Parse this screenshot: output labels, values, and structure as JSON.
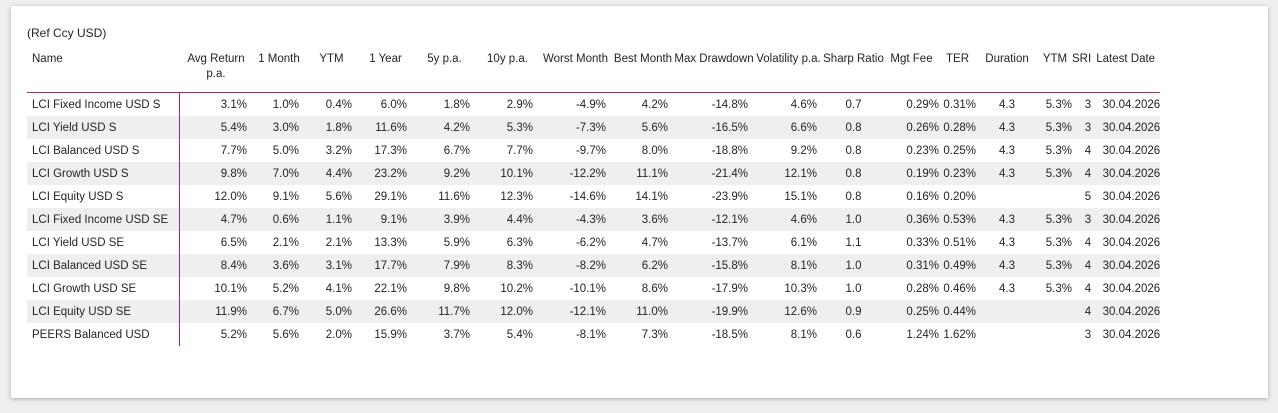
{
  "caption": "(Ref Ccy USD)",
  "headers": {
    "name": "Name",
    "avg_return": "Avg Return p.a.",
    "m1": "1 Month",
    "ytm": "YTM",
    "y1": "1 Year",
    "y5": "5y p.a.",
    "y10": "10y p.a.",
    "worst": "Worst Month",
    "best": "Best Month",
    "maxdd": "Max Drawdown",
    "vol": "Volatility p.a.",
    "sharp": "Sharp Ratio",
    "mgt": "Mgt Fee",
    "ter": "TER",
    "duration": "Duration",
    "ytm2": "YTM",
    "sri": "SRI",
    "date": "Latest Date"
  },
  "rows": [
    {
      "name": "LCI Fixed Income USD S",
      "avg": "3.1%",
      "m1": "1.0%",
      "ytm": "0.4%",
      "y1": "6.0%",
      "y5": "1.8%",
      "y10": "2.9%",
      "worst": "-4.9%",
      "best": "4.2%",
      "maxdd": "-14.8%",
      "vol": "4.6%",
      "sharp": "0.7",
      "mgt": "0.29%",
      "ter": "0.31%",
      "dur": "4.3",
      "ytm2": "5.3%",
      "sri": "3",
      "date": "30.04.2026"
    },
    {
      "name": "LCI Yield USD S",
      "avg": "5.4%",
      "m1": "3.0%",
      "ytm": "1.8%",
      "y1": "11.6%",
      "y5": "4.2%",
      "y10": "5.3%",
      "worst": "-7.3%",
      "best": "5.6%",
      "maxdd": "-16.5%",
      "vol": "6.6%",
      "sharp": "0.8",
      "mgt": "0.26%",
      "ter": "0.28%",
      "dur": "4.3",
      "ytm2": "5.3%",
      "sri": "3",
      "date": "30.04.2026"
    },
    {
      "name": "LCI Balanced USD S",
      "avg": "7.7%",
      "m1": "5.0%",
      "ytm": "3.2%",
      "y1": "17.3%",
      "y5": "6.7%",
      "y10": "7.7%",
      "worst": "-9.7%",
      "best": "8.0%",
      "maxdd": "-18.8%",
      "vol": "9.2%",
      "sharp": "0.8",
      "mgt": "0.23%",
      "ter": "0.25%",
      "dur": "4.3",
      "ytm2": "5.3%",
      "sri": "4",
      "date": "30.04.2026"
    },
    {
      "name": "LCI Growth USD S",
      "avg": "9.8%",
      "m1": "7.0%",
      "ytm": "4.4%",
      "y1": "23.2%",
      "y5": "9.2%",
      "y10": "10.1%",
      "worst": "-12.2%",
      "best": "11.1%",
      "maxdd": "-21.4%",
      "vol": "12.1%",
      "sharp": "0.8",
      "mgt": "0.19%",
      "ter": "0.23%",
      "dur": "4.3",
      "ytm2": "5.3%",
      "sri": "4",
      "date": "30.04.2026"
    },
    {
      "name": "LCI Equity USD S",
      "avg": "12.0%",
      "m1": "9.1%",
      "ytm": "5.6%",
      "y1": "29.1%",
      "y5": "11.6%",
      "y10": "12.3%",
      "worst": "-14.6%",
      "best": "14.1%",
      "maxdd": "-23.9%",
      "vol": "15.1%",
      "sharp": "0.8",
      "mgt": "0.16%",
      "ter": "0.20%",
      "dur": "",
      "ytm2": "",
      "sri": "5",
      "date": "30.04.2026"
    },
    {
      "name": "LCI Fixed Income USD SE",
      "avg": "4.7%",
      "m1": "0.6%",
      "ytm": "1.1%",
      "y1": "9.1%",
      "y5": "3.9%",
      "y10": "4.4%",
      "worst": "-4.3%",
      "best": "3.6%",
      "maxdd": "-12.1%",
      "vol": "4.6%",
      "sharp": "1.0",
      "mgt": "0.36%",
      "ter": "0.53%",
      "dur": "4.3",
      "ytm2": "5.3%",
      "sri": "3",
      "date": "30.04.2026"
    },
    {
      "name": "LCI Yield USD SE",
      "avg": "6.5%",
      "m1": "2.1%",
      "ytm": "2.1%",
      "y1": "13.3%",
      "y5": "5.9%",
      "y10": "6.3%",
      "worst": "-6.2%",
      "best": "4.7%",
      "maxdd": "-13.7%",
      "vol": "6.1%",
      "sharp": "1.1",
      "mgt": "0.33%",
      "ter": "0.51%",
      "dur": "4.3",
      "ytm2": "5.3%",
      "sri": "4",
      "date": "30.04.2026"
    },
    {
      "name": "LCI Balanced USD SE",
      "avg": "8.4%",
      "m1": "3.6%",
      "ytm": "3.1%",
      "y1": "17.7%",
      "y5": "7.9%",
      "y10": "8.3%",
      "worst": "-8.2%",
      "best": "6.2%",
      "maxdd": "-15.8%",
      "vol": "8.1%",
      "sharp": "1.0",
      "mgt": "0.31%",
      "ter": "0.49%",
      "dur": "4.3",
      "ytm2": "5.3%",
      "sri": "4",
      "date": "30.04.2026"
    },
    {
      "name": "LCI Growth USD SE",
      "avg": "10.1%",
      "m1": "5.2%",
      "ytm": "4.1%",
      "y1": "22.1%",
      "y5": "9.8%",
      "y10": "10.2%",
      "worst": "-10.1%",
      "best": "8.6%",
      "maxdd": "-17.9%",
      "vol": "10.3%",
      "sharp": "1.0",
      "mgt": "0.28%",
      "ter": "0.46%",
      "dur": "4.3",
      "ytm2": "5.3%",
      "sri": "4",
      "date": "30.04.2026"
    },
    {
      "name": "LCI Equity USD SE",
      "avg": "11.9%",
      "m1": "6.7%",
      "ytm": "5.0%",
      "y1": "26.6%",
      "y5": "11.7%",
      "y10": "12.0%",
      "worst": "-12.1%",
      "best": "11.0%",
      "maxdd": "-19.9%",
      "vol": "12.6%",
      "sharp": "0.9",
      "mgt": "0.25%",
      "ter": "0.44%",
      "dur": "",
      "ytm2": "",
      "sri": "4",
      "date": "30.04.2026"
    },
    {
      "name": "PEERS Balanced USD",
      "avg": "5.2%",
      "m1": "5.6%",
      "ytm": "2.0%",
      "y1": "15.9%",
      "y5": "3.7%",
      "y10": "5.4%",
      "worst": "-8.1%",
      "best": "7.3%",
      "maxdd": "-18.5%",
      "vol": "8.1%",
      "sharp": "0.6",
      "mgt": "1.24%",
      "ter": "1.62%",
      "dur": "",
      "ytm2": "",
      "sri": "3",
      "date": "30.04.2026"
    }
  ]
}
